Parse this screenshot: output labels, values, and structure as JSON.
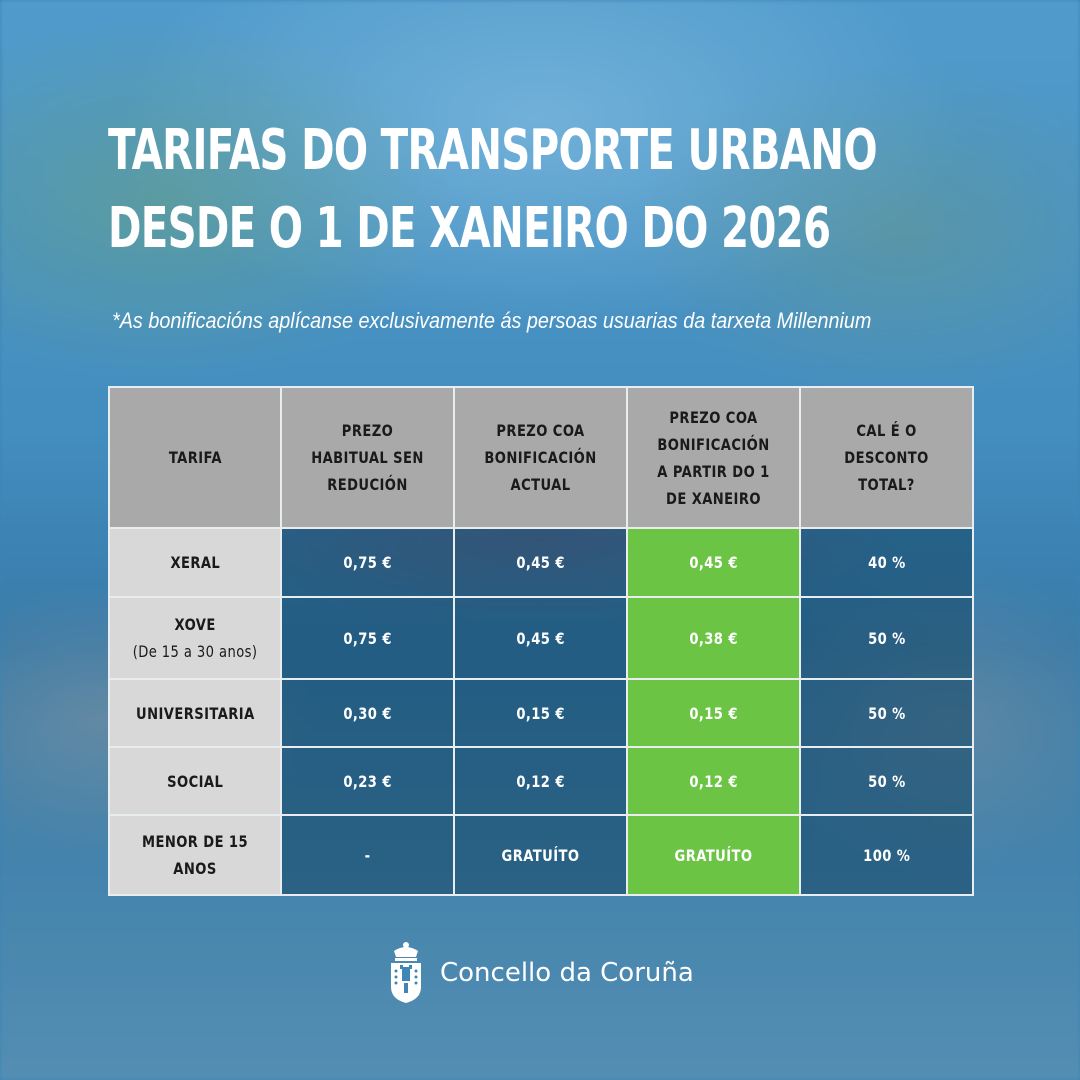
{
  "header": {
    "title_line1": "TARIFAS DO TRANSPORTE URBANO",
    "title_line2": "DESDE O 1 DE XANEIRO DO 2026",
    "note": "*As bonificacións aplícanse exclusivamente ás persoas usuarias da tarxeta Millennium"
  },
  "table": {
    "headers": [
      "TARIFA",
      "PREZO HABITUAL SEN REDUCIÓN",
      "PREZO COA BONIFICACIÓN ACTUAL",
      "PREZO COA BONIFICACIÓN A PARTIR DO 1 DE XANEIRO",
      "CAL É O DESCONTO TOTAL?"
    ],
    "rows": [
      {
        "name": "XERAL",
        "name_sub": "",
        "regular": "0,75 €",
        "current": "0,45 €",
        "new": "0,45 €",
        "discount": "40 %"
      },
      {
        "name": "XOVE",
        "name_sub": "(De 15 a 30 anos)",
        "regular": "0,75 €",
        "current": "0,45 €",
        "new": "0,38 €",
        "discount": "50 %"
      },
      {
        "name": "UNIVERSITARIA",
        "name_sub": "",
        "regular": "0,30 €",
        "current": "0,15 €",
        "new": "0,15 €",
        "discount": "50 %"
      },
      {
        "name": "SOCIAL",
        "name_sub": "",
        "regular": "0,23 €",
        "current": "0,12 €",
        "new": "0,12 €",
        "discount": "50 %"
      },
      {
        "name": "MENOR DE 15 ANOS",
        "name_sub": "",
        "regular": "-",
        "current": "GRATUÍTO",
        "new": "GRATUÍTO",
        "discount": "100 %"
      }
    ]
  },
  "footer": {
    "org_name": "Concello da Coruña",
    "logo_icon": "coat-of-arms-icon"
  },
  "colors": {
    "highlight": "#6cc445",
    "header_gray": "#a9a9a9",
    "name_gray": "#d8d8d8"
  }
}
